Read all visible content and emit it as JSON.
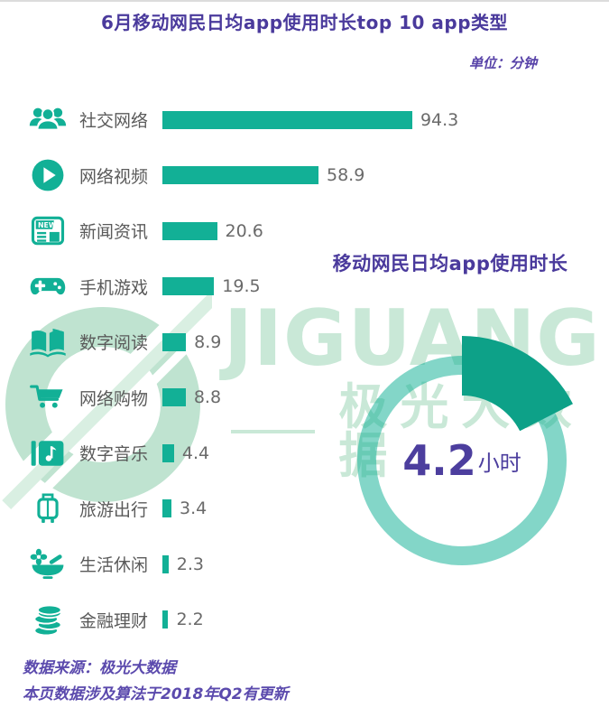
{
  "header": {
    "title": "6月移动网民日均app使用时长top 10 app类型",
    "unit_label": "单位：分钟"
  },
  "chart_data": [
    {
      "type": "bar",
      "orientation": "horizontal",
      "title": "6月移动网民日均app使用时长top 10 app类型",
      "unit": "分钟",
      "unit_label": "单位：分钟",
      "categories": [
        "社交网络",
        "网络视频",
        "新闻资讯",
        "手机游戏",
        "数字阅读",
        "网络购物",
        "数字音乐",
        "旅游出行",
        "生活休闲",
        "金融理财"
      ],
      "values": [
        94.3,
        58.9,
        20.6,
        19.5,
        8.9,
        8.8,
        4.4,
        3.4,
        2.3,
        2.2
      ],
      "value_labels": [
        "94.3",
        "58.9",
        "20.6",
        "19.5",
        "8.9",
        "8.8",
        "4.4",
        "3.4",
        "2.3",
        "2.2"
      ],
      "icons": [
        "users-group-icon",
        "play-circle-icon",
        "newspaper-icon",
        "gamepad-icon",
        "open-book-icon",
        "shopping-cart-icon",
        "music-note-icon",
        "suitcase-icon",
        "bowl-flower-icon",
        "coins-stack-icon"
      ],
      "xlim": [
        0,
        100
      ],
      "grid": false,
      "legend": false
    },
    {
      "type": "donut",
      "title": "移动网民日均app使用时长",
      "value": 4.2,
      "total": 24,
      "unit": "小时",
      "center_value": "4.2",
      "center_unit": "小时",
      "start_angle_deg": 0,
      "direction": "clockwise"
    }
  ],
  "watermark": {
    "brand": "JIGUANG",
    "brand_cn": "极光大数据"
  },
  "footer": {
    "line1": "数据来源：极光大数据",
    "line2": "本页数据涉及算法于2018年Q2有更新"
  },
  "colors": {
    "bar_teal": "#12b096",
    "wedge_green": "#0da188",
    "ring_teal": "#7fcdbb",
    "title_purple": "#4a3a9c",
    "footer_purple": "#5b4aad",
    "label_gray": "#5a5a5a",
    "value_gray": "#6a6a6a",
    "watermark_green": "#c9e8d7"
  }
}
